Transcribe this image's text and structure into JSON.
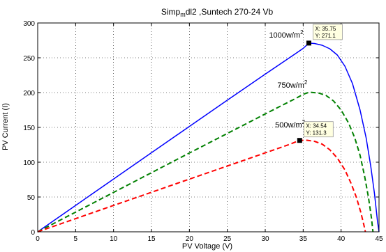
{
  "chart_data": {
    "type": "line",
    "title_parts": {
      "main": "Simp",
      "sub": "m",
      "rest": "dl2 ,Suntech 270-24 ",
      "tail": "Vb"
    },
    "xlabel": "PV Voltage (V)",
    "ylabel": "PV Current (I)",
    "xlim": [
      0,
      45
    ],
    "ylim": [
      0,
      300
    ],
    "xticks": [
      0,
      5,
      10,
      15,
      20,
      25,
      30,
      35,
      40,
      45
    ],
    "yticks": [
      0,
      50,
      100,
      150,
      200,
      250,
      300
    ],
    "grid": true,
    "series": [
      {
        "color": "#0000ff",
        "style": "solid",
        "points": [
          [
            0,
            0
          ],
          [
            5,
            37.9
          ],
          [
            10,
            75.8
          ],
          [
            15,
            113.6
          ],
          [
            20,
            151.4
          ],
          [
            25,
            189.1
          ],
          [
            30,
            226.5
          ],
          [
            32,
            241.2
          ],
          [
            34,
            256
          ],
          [
            35,
            263.5
          ],
          [
            35.75,
            271.1
          ],
          [
            36.5,
            270.5
          ],
          [
            37.5,
            268
          ],
          [
            38.5,
            263
          ],
          [
            39.5,
            254
          ],
          [
            40.5,
            238
          ],
          [
            41.5,
            213
          ],
          [
            42.5,
            175
          ],
          [
            43.3,
            135
          ],
          [
            43.9,
            95
          ],
          [
            44.4,
            55
          ],
          [
            44.8,
            15
          ],
          [
            45,
            0
          ]
        ]
      },
      {
        "color": "#008000",
        "style": "dashed",
        "points": [
          [
            0,
            0
          ],
          [
            5,
            28.3
          ],
          [
            10,
            56.6
          ],
          [
            15,
            84.9
          ],
          [
            20,
            113.2
          ],
          [
            25,
            141.3
          ],
          [
            30,
            169.3
          ],
          [
            32,
            180.5
          ],
          [
            34,
            191.5
          ],
          [
            35,
            197.5
          ],
          [
            35.8,
            200.5
          ],
          [
            37,
            199.5
          ],
          [
            38,
            196
          ],
          [
            39,
            188
          ],
          [
            40,
            175
          ],
          [
            41,
            156
          ],
          [
            41.8,
            135
          ],
          [
            42.5,
            110
          ],
          [
            43.1,
            80
          ],
          [
            43.6,
            50
          ],
          [
            44,
            20
          ],
          [
            44.2,
            0
          ]
        ]
      },
      {
        "color": "#ff0000",
        "style": "dashed",
        "points": [
          [
            0,
            0
          ],
          [
            5,
            18.9
          ],
          [
            10,
            37.9
          ],
          [
            15,
            56.8
          ],
          [
            20,
            75.7
          ],
          [
            25,
            94.5
          ],
          [
            30,
            113.4
          ],
          [
            33,
            124.8
          ],
          [
            34.54,
            131.3
          ],
          [
            35.5,
            131.5
          ],
          [
            36.5,
            130
          ],
          [
            37.5,
            126
          ],
          [
            38.5,
            118
          ],
          [
            39.5,
            106
          ],
          [
            40.5,
            89
          ],
          [
            41.3,
            70
          ],
          [
            42,
            50
          ],
          [
            42.6,
            28
          ],
          [
            43,
            10
          ],
          [
            43.2,
            0
          ]
        ]
      }
    ],
    "annotations": [
      {
        "main": "1000w/m",
        "sup": "2",
        "x": 30.5,
        "y": 279,
        "anchor": "start"
      },
      {
        "main": "750w/m",
        "sup": "2",
        "x": 31.6,
        "y": 207,
        "anchor": "start"
      },
      {
        "main": "500w/m",
        "sup": "2",
        "x": 31.3,
        "y": 150,
        "anchor": "start"
      }
    ],
    "datatips": [
      {
        "x": 35.75,
        "y": 271.1,
        "line1": "X: 35.75",
        "line2": "Y: 271.1"
      },
      {
        "x": 34.54,
        "y": 131.3,
        "line1": "X: 34.54",
        "line2": "Y: 131.3"
      }
    ]
  }
}
